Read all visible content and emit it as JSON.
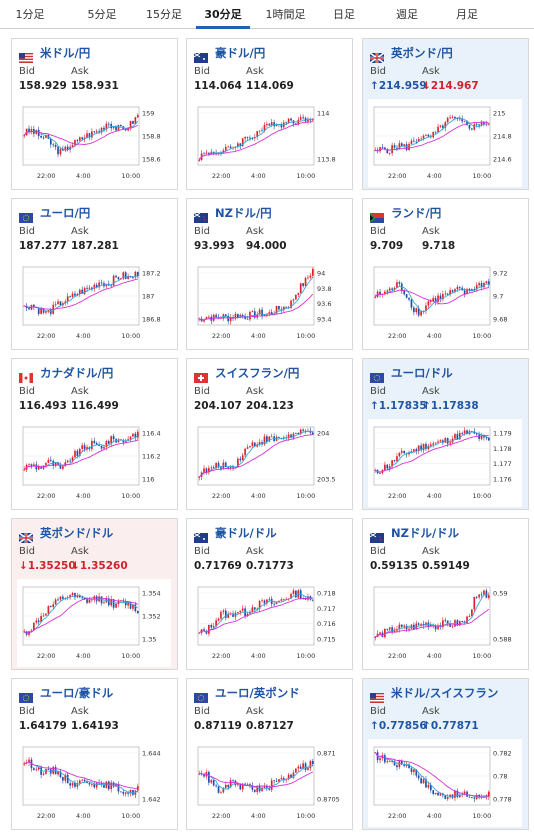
{
  "tabs": [
    {
      "label": "1分足",
      "active": false
    },
    {
      "label": "5分足",
      "active": false
    },
    {
      "label": "15分足",
      "active": false
    },
    {
      "label": "30分足",
      "active": true
    },
    {
      "label": "1時間足",
      "active": false
    },
    {
      "label": "日足",
      "active": false
    },
    {
      "label": "週足",
      "active": false
    },
    {
      "label": "月足",
      "active": false
    }
  ],
  "labels": {
    "bid": "Bid",
    "ask": "Ask"
  },
  "colors": {
    "title": "#1f55a6",
    "up_candle": "#e0232a",
    "down_candle": "#1f4fa8",
    "ma": "#d633d6",
    "ma_fast": "#3aa7d8",
    "up_highlight": "#e9f2fb",
    "down_highlight": "#fbeeee"
  },
  "time_ticks": [
    "22:00",
    "4:00",
    "10:00"
  ],
  "cards": [
    {
      "name": "米ドル/円",
      "flag": "us-jp",
      "bid": "158.929",
      "ask": "158.931",
      "dir": "",
      "y_ticks": [
        "159",
        "158.8",
        "158.6"
      ],
      "trend": [
        0.55,
        0.6,
        0.5,
        0.45,
        0.3,
        0.2,
        0.35,
        0.4,
        0.5,
        0.55,
        0.6,
        0.75,
        0.65,
        0.6,
        0.7,
        0.85
      ]
    },
    {
      "name": "豪ドル/円",
      "flag": "au-jp",
      "bid": "114.064",
      "ask": "114.069",
      "dir": "",
      "y_ticks": [
        "114",
        "113.8"
      ],
      "trend": [
        0.15,
        0.2,
        0.25,
        0.2,
        0.3,
        0.35,
        0.45,
        0.5,
        0.6,
        0.65,
        0.75,
        0.7,
        0.8,
        0.75,
        0.8,
        0.85
      ]
    },
    {
      "name": "英ポンド/円",
      "flag": "gb-jp",
      "bid": "214.959",
      "ask": "214.967",
      "dir": "mixed",
      "bid_arrow": "↑",
      "ask_arrow": "↓",
      "y_ticks": [
        "215",
        "214.8",
        "214.6"
      ],
      "trend": [
        0.2,
        0.3,
        0.25,
        0.35,
        0.3,
        0.4,
        0.5,
        0.45,
        0.55,
        0.7,
        0.8,
        0.75,
        0.7,
        0.65,
        0.75,
        0.7
      ]
    },
    {
      "name": "ユーロ/円",
      "flag": "eu-jp",
      "bid": "187.277",
      "ask": "187.281",
      "dir": "",
      "y_ticks": [
        "187.2",
        "187",
        "186.8"
      ],
      "trend": [
        0.3,
        0.35,
        0.25,
        0.2,
        0.3,
        0.4,
        0.45,
        0.55,
        0.6,
        0.65,
        0.75,
        0.7,
        0.8,
        0.85,
        0.8,
        0.9
      ]
    },
    {
      "name": "NZドル/円",
      "flag": "nz-jp",
      "bid": "93.993",
      "ask": "94.000",
      "dir": "",
      "y_ticks": [
        "94",
        "93.8",
        "93.6",
        "93.4"
      ],
      "trend": [
        0.1,
        0.15,
        0.12,
        0.15,
        0.12,
        0.18,
        0.15,
        0.17,
        0.2,
        0.18,
        0.25,
        0.3,
        0.35,
        0.6,
        0.75,
        0.95
      ]
    },
    {
      "name": "ランド/円",
      "flag": "za-jp",
      "bid": "9.709",
      "ask": "9.718",
      "dir": "",
      "y_ticks": [
        "9.72",
        "9.7",
        "9.68"
      ],
      "trend": [
        0.5,
        0.55,
        0.6,
        0.7,
        0.55,
        0.3,
        0.2,
        0.4,
        0.45,
        0.5,
        0.55,
        0.6,
        0.55,
        0.65,
        0.7,
        0.75
      ]
    },
    {
      "name": "カナダドル/円",
      "flag": "ca-jp",
      "bid": "116.493",
      "ask": "116.499",
      "dir": "",
      "y_ticks": [
        "116.4",
        "116.2",
        "116"
      ],
      "trend": [
        0.3,
        0.35,
        0.3,
        0.4,
        0.35,
        0.25,
        0.45,
        0.55,
        0.65,
        0.7,
        0.65,
        0.75,
        0.8,
        0.75,
        0.85,
        0.9
      ]
    },
    {
      "name": "スイスフラン/円",
      "flag": "ch-jp",
      "bid": "204.107",
      "ask": "204.123",
      "dir": "",
      "y_ticks": [
        "204",
        "203.5"
      ],
      "trend": [
        0.2,
        0.25,
        0.3,
        0.35,
        0.3,
        0.4,
        0.6,
        0.7,
        0.75,
        0.8,
        0.78,
        0.82,
        0.85,
        0.88,
        0.9,
        0.92
      ]
    },
    {
      "name": "ユーロ/ドル",
      "flag": "eu-us",
      "bid": "1.17835",
      "ask": "1.17838",
      "dir": "up",
      "bid_arrow": "↑",
      "ask_arrow": "↑",
      "y_ticks": [
        "1.179",
        "1.178",
        "1.177",
        "1.176"
      ],
      "trend": [
        0.2,
        0.3,
        0.35,
        0.5,
        0.55,
        0.6,
        0.65,
        0.7,
        0.72,
        0.75,
        0.8,
        0.85,
        0.9,
        0.88,
        0.8,
        0.75
      ]
    },
    {
      "name": "英ポンド/ドル",
      "flag": "gb-us",
      "bid": "1.35250",
      "ask": "1.35260",
      "dir": "down",
      "bid_arrow": "↓",
      "ask_arrow": "↓",
      "y_ticks": [
        "1.354",
        "1.352",
        "1.35"
      ],
      "trend": [
        0.2,
        0.3,
        0.45,
        0.6,
        0.7,
        0.8,
        0.85,
        0.8,
        0.75,
        0.78,
        0.8,
        0.75,
        0.7,
        0.72,
        0.68,
        0.6
      ]
    },
    {
      "name": "豪ドル/ドル",
      "flag": "au-us",
      "bid": "0.71769",
      "ask": "0.71773",
      "dir": "",
      "y_ticks": [
        "0.718",
        "0.717",
        "0.716",
        "0.715"
      ],
      "trend": [
        0.2,
        0.25,
        0.4,
        0.55,
        0.5,
        0.6,
        0.55,
        0.65,
        0.7,
        0.75,
        0.7,
        0.8,
        0.85,
        0.9,
        0.8,
        0.75
      ]
    },
    {
      "name": "NZドル/ドル",
      "flag": "nz-us",
      "bid": "0.59135",
      "ask": "0.59149",
      "dir": "",
      "y_ticks": [
        "0.59",
        "0.588"
      ],
      "trend": [
        0.15,
        0.2,
        0.25,
        0.3,
        0.28,
        0.32,
        0.35,
        0.38,
        0.33,
        0.36,
        0.35,
        0.38,
        0.4,
        0.75,
        0.85,
        0.9
      ]
    },
    {
      "name": "ユーロ/豪ドル",
      "flag": "eu-au",
      "bid": "1.64179",
      "ask": "1.64193",
      "dir": "",
      "y_ticks": [
        "1.644",
        "1.642"
      ],
      "trend": [
        0.75,
        0.7,
        0.6,
        0.55,
        0.6,
        0.5,
        0.4,
        0.35,
        0.45,
        0.4,
        0.3,
        0.35,
        0.3,
        0.25,
        0.2,
        0.3
      ]
    },
    {
      "name": "ユーロ/英ポンド",
      "flag": "eu-gb",
      "bid": "0.87119",
      "ask": "0.87127",
      "dir": "",
      "y_ticks": [
        "0.871",
        "0.8705"
      ],
      "trend": [
        0.6,
        0.5,
        0.3,
        0.2,
        0.4,
        0.3,
        0.35,
        0.3,
        0.25,
        0.3,
        0.4,
        0.45,
        0.5,
        0.7,
        0.65,
        0.75
      ]
    },
    {
      "name": "米ドル/スイスフラン",
      "flag": "us-ch",
      "bid": "0.77856",
      "ask": "0.77871",
      "dir": "up",
      "bid_arrow": "↑",
      "ask_arrow": "↑",
      "y_ticks": [
        "0.782",
        "0.78",
        "0.778"
      ],
      "trend": [
        0.85,
        0.8,
        0.75,
        0.7,
        0.72,
        0.6,
        0.45,
        0.3,
        0.2,
        0.15,
        0.2,
        0.15,
        0.18,
        0.12,
        0.15,
        0.2
      ]
    }
  ]
}
